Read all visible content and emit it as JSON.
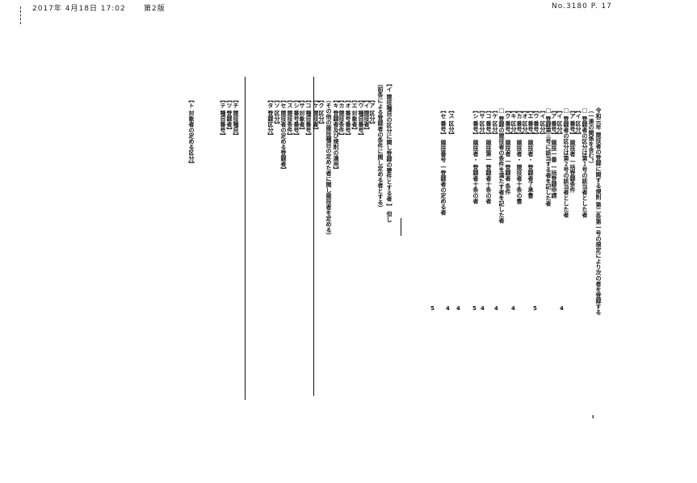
{
  "header": {
    "left": "2017年 4月18日 17:02",
    "center": "第2版",
    "right": "No.3180  P. 17"
  },
  "right_block": [
    "令和元年 競技者の登録に関する規則 第二条第一号の規定により次の者を登録する",
    "（一連の関係を含む。）",
    "□ 登録者の区分は第１号の該当者とした者",
    "【イ 区分】",
    "【ア 番号】 競技者 一括登録条件",
    "□ 登録者の区分は第２号の該当者とした者",
    "【イ 区分】",
    "【ア 番号】 競技一番 一括登録申請",
    "□ 登録第三号に該当する者を記した者",
    "【イ 区分】",
    "【ウ 番号】",
    "【エ 番号】 競技者・ 登録者了承書",
    "【オ 区分】",
    "【カ 番号】 競技者・ 競技者十条の書",
    "【キ 区分】",
    "【ク 番号】 競技者 一登録者 条件",
    "□ 登録の競技者の条件を満たす者を記した者",
    "【ケ 区分】",
    "【コ 番号】 競技第一 登録者十条の者",
    "【サ 区分】",
    "【シ 番号】 競技者・ 登録者十条の者",
    "【ス 区分】",
    "【セ 番号】 競技番号 一登録者の定める者"
  ],
  "right_marks": [
    "4",
    "5",
    "4",
    "4",
    "4",
    "5",
    "4",
    "4",
    "5"
  ],
  "left_block": [
    "【イ 競技種目の区分に関し登録の要件とする者 】 但し",
    "（前条による登録者の条件に関し定める者とする）",
    "【ア 区分】",
    "【イ 競技者】",
    "【ウ 種目番号】",
    "【エ 対象者】",
    "【オ 番号番号】",
    "【カ 競技条件】",
    "【キ 登録者及び規則の適用】",
    "（その他の競技種目の定めた者に関し競技者を定める）",
    "【ク 区分】",
    "【ケ 競技者】",
    "【コ 種目番号】",
    "【サ 対象者】",
    "【シ 番号番号】",
    "【ス 競技条件】",
    "【セ 競技者の定める登録者】",
    "【ソ 区分】",
    "【タ 登録区分】",
    "【チ 競技種目】",
    "【ツ 登録者】",
    "【テ 種目番号】",
    "【ト 対象者の定める区分】"
  ]
}
